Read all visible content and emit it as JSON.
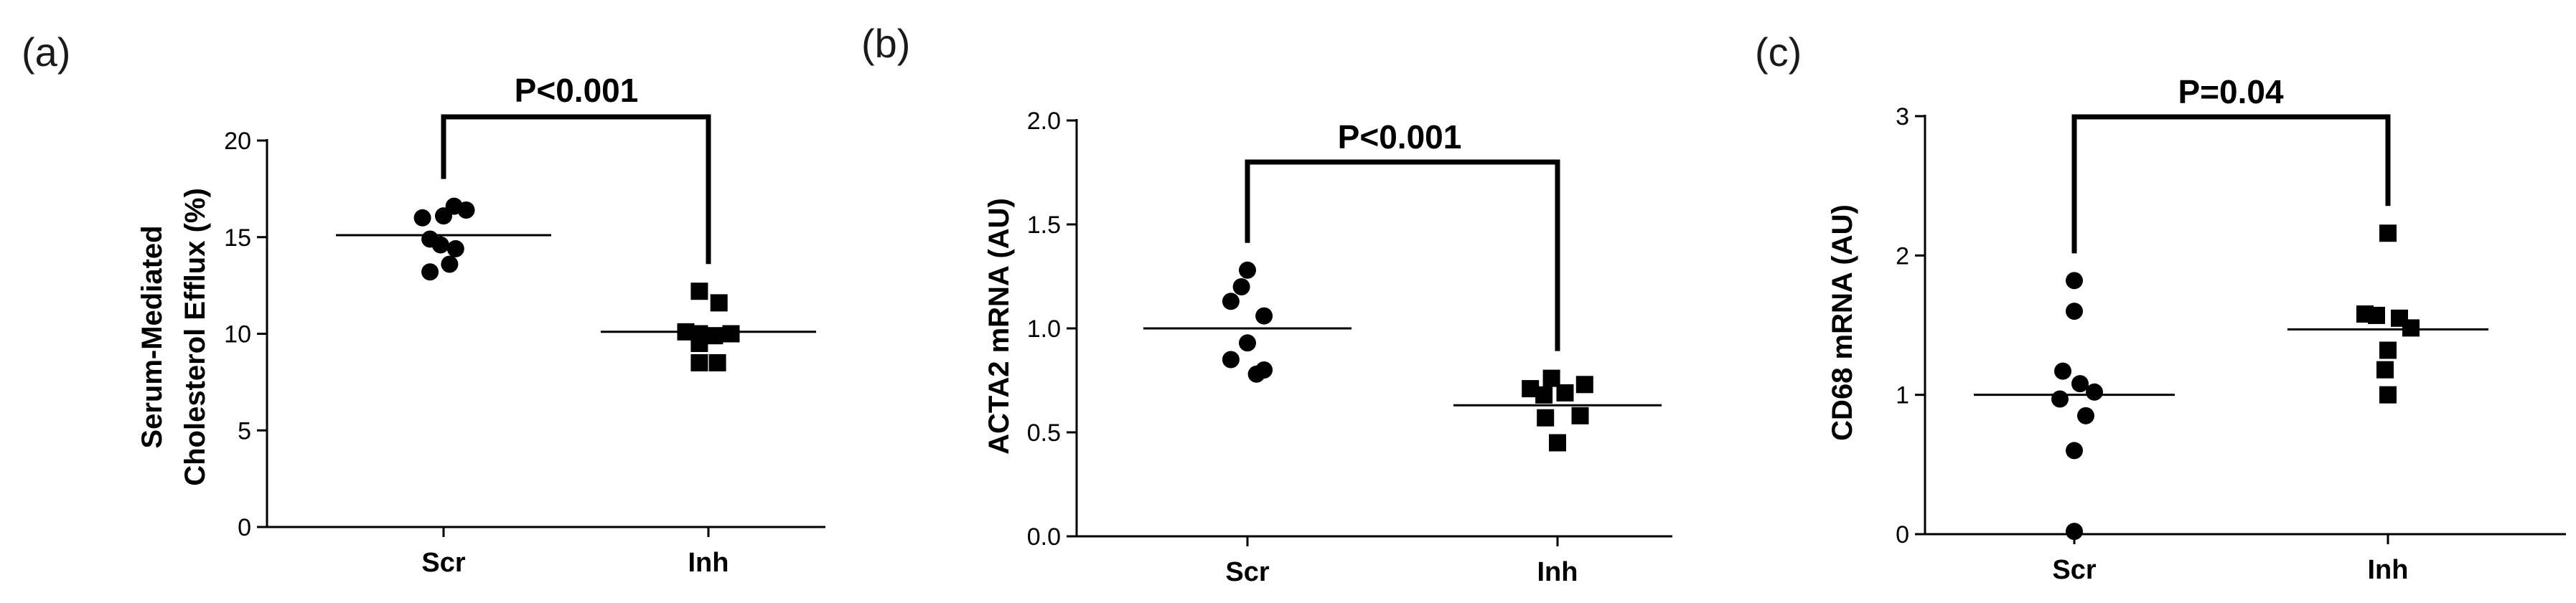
{
  "chart_data": [
    {
      "type": "scatter",
      "panel_label": "(a)",
      "ylabel_lines": [
        "Serum-Mediated",
        "Cholesterol Efflux (%)"
      ],
      "ylim": [
        0,
        20
      ],
      "yticks": [
        0,
        5,
        10,
        15,
        20
      ],
      "ytick_labels": [
        "0",
        "5",
        "10",
        "15",
        "20"
      ],
      "categories": [
        "Scr",
        "Inh"
      ],
      "marker_shapes": [
        "circle",
        "square"
      ],
      "series": [
        {
          "category": "Scr",
          "values": [
            16.0,
            16.1,
            16.6,
            16.4,
            14.9,
            14.4,
            14.6,
            13.2,
            13.6
          ],
          "x_offsets": [
            -0.7,
            0,
            0.35,
            0.75,
            -0.45,
            0.4,
            -0.1,
            -0.45,
            0.2
          ],
          "median": 15.1
        },
        {
          "category": "Inh",
          "values": [
            12.2,
            11.6,
            10.1,
            10.0,
            10.0,
            9.9,
            9.5,
            8.5,
            8.5
          ],
          "x_offsets": [
            -0.3,
            0.35,
            -0.75,
            -0.3,
            0.75,
            0.2,
            -0.3,
            -0.3,
            0.3
          ],
          "median": 10.1
        }
      ],
      "significance": {
        "label": "P<0.001"
      }
    },
    {
      "type": "scatter",
      "panel_label": "(b)",
      "ylabel_lines": [
        "ACTA2 mRNA (AU)"
      ],
      "ylim": [
        0,
        2.0
      ],
      "yticks": [
        0,
        0.5,
        1.0,
        1.5,
        2.0
      ],
      "ytick_labels": [
        "0.0",
        "0.5",
        "1.0",
        "1.5",
        "2.0"
      ],
      "categories": [
        "Scr",
        "Inh"
      ],
      "marker_shapes": [
        "circle",
        "square"
      ],
      "series": [
        {
          "category": "Scr",
          "values": [
            1.28,
            1.2,
            1.13,
            1.06,
            0.93,
            0.85,
            0.8,
            0.78
          ],
          "x_offsets": [
            0,
            -0.2,
            -0.55,
            0.55,
            0,
            -0.55,
            0.55,
            0.3
          ],
          "median": 1.0
        },
        {
          "category": "Inh",
          "values": [
            0.76,
            0.73,
            0.71,
            0.69,
            0.68,
            0.58,
            0.57,
            0.45
          ],
          "x_offsets": [
            -0.2,
            0.9,
            -0.9,
            0.25,
            -0.45,
            0.75,
            -0.4,
            0
          ],
          "median": 0.63
        }
      ],
      "significance": {
        "label": "P<0.001"
      }
    },
    {
      "type": "scatter",
      "panel_label": "(c)",
      "ylabel_lines": [
        "CD68 mRNA (AU)"
      ],
      "ylim": [
        0,
        3
      ],
      "yticks": [
        0,
        1,
        2,
        3
      ],
      "ytick_labels": [
        "0",
        "1",
        "2",
        "3"
      ],
      "categories": [
        "Scr",
        "Inh"
      ],
      "marker_shapes": [
        "circle",
        "square"
      ],
      "series": [
        {
          "category": "Scr",
          "values": [
            1.82,
            1.6,
            1.17,
            1.08,
            1.02,
            0.97,
            0.85,
            0.6,
            0.02
          ],
          "x_offsets": [
            0,
            0,
            -0.4,
            0.2,
            0.7,
            -0.5,
            0.4,
            0,
            0
          ],
          "median": 1.0
        },
        {
          "category": "Inh",
          "values": [
            2.16,
            1.58,
            1.57,
            1.55,
            1.48,
            1.32,
            1.18,
            1.0
          ],
          "x_offsets": [
            0,
            -0.8,
            -0.4,
            0.4,
            0.8,
            0,
            -0.1,
            0
          ],
          "median": 1.47
        }
      ],
      "significance": {
        "label": "P=0.04"
      }
    }
  ]
}
